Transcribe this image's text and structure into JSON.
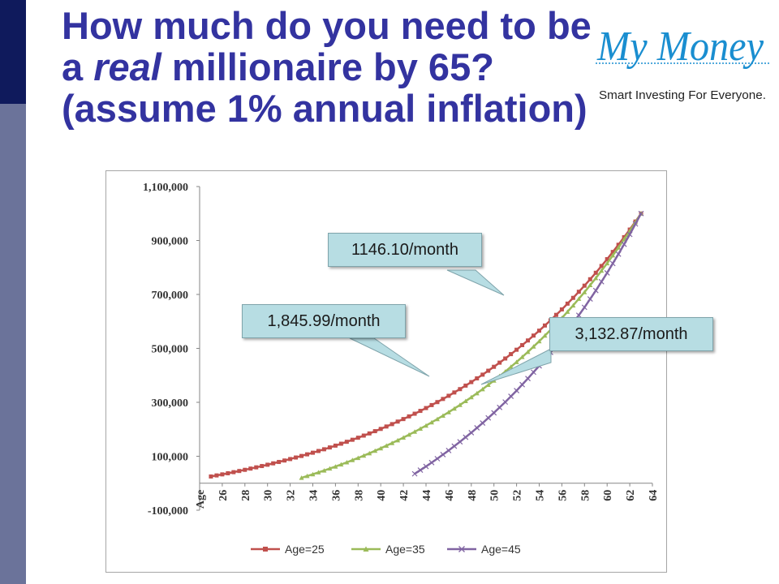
{
  "slide": {
    "title_part1": "How much do you need to be a ",
    "title_emphasis": "real",
    "title_part2": " millionaire by 65? (assume 1% annual inflation)"
  },
  "logo": {
    "wordmark": "My Money",
    "tagline": "Smart Investing For Everyone.",
    "color": "#1a8ed0"
  },
  "callouts": [
    {
      "text": "1146.10/month"
    },
    {
      "text": "1,845.99/month"
    },
    {
      "text": "3,132.87/month"
    }
  ],
  "chart_data": {
    "type": "line",
    "title": "",
    "xlabel": "",
    "ylabel": "",
    "x_first_label": "Age",
    "x_ticks": [
      26,
      28,
      30,
      32,
      34,
      36,
      38,
      40,
      42,
      44,
      46,
      48,
      50,
      52,
      54,
      56,
      58,
      60,
      62,
      64
    ],
    "xlim": [
      24,
      64
    ],
    "y_ticks": [
      "1,100,000",
      "900,000",
      "700,000",
      "500,000",
      "300,000",
      "100,000",
      "-100,000"
    ],
    "ylim": [
      -100000,
      1100000
    ],
    "grid": false,
    "legend_position": "bottom",
    "series": [
      {
        "name": "Age=25",
        "color": "#c0504d",
        "marker": "square",
        "start_age": 25,
        "end_age": 63,
        "start_value": 25000,
        "end_value": 1000000
      },
      {
        "name": "Age=35",
        "color": "#9bbb59",
        "marker": "triangle",
        "start_age": 33,
        "end_age": 63,
        "start_value": 20000,
        "end_value": 1000000
      },
      {
        "name": "Age=45",
        "color": "#8064a2",
        "marker": "x",
        "start_age": 43,
        "end_age": 63,
        "start_value": 35000,
        "end_value": 1000000
      }
    ]
  }
}
